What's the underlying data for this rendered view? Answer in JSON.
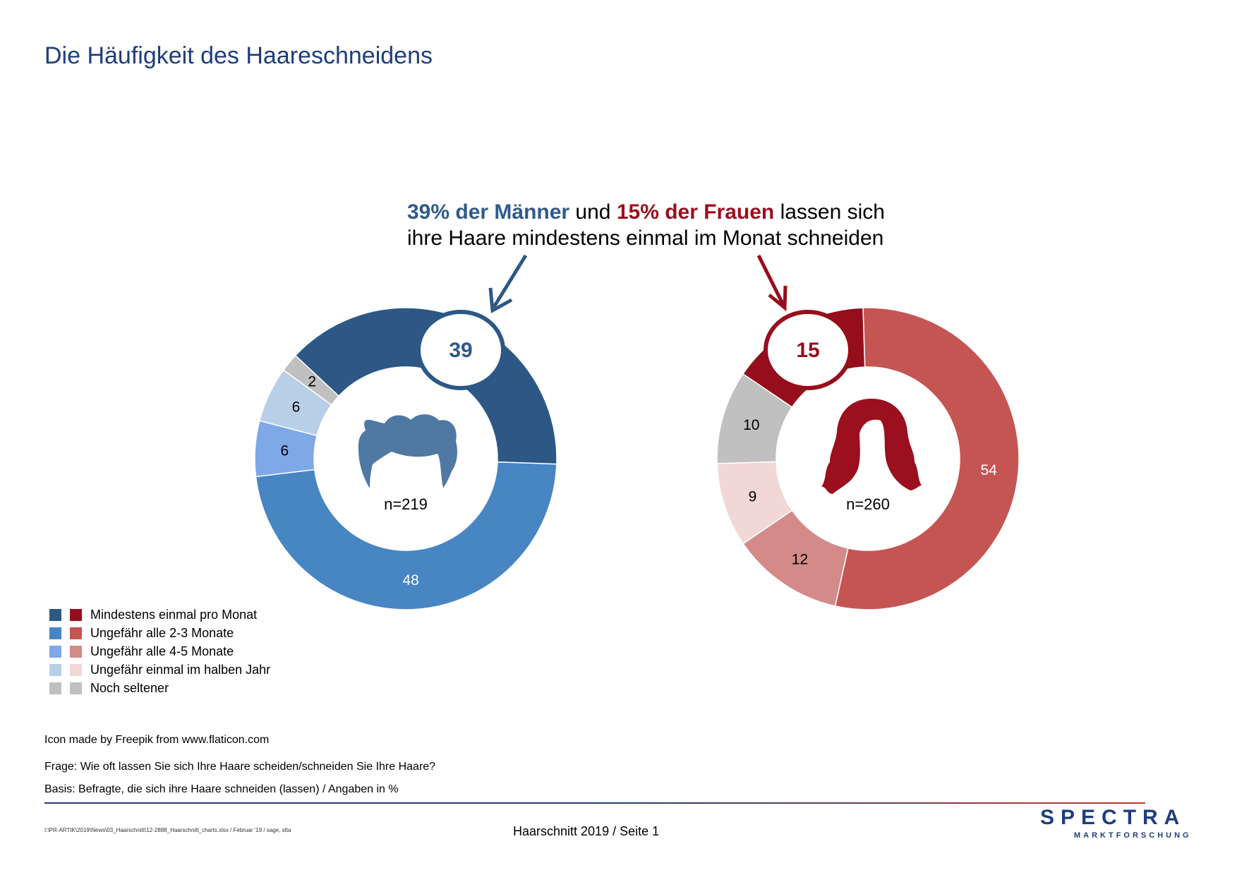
{
  "page": {
    "title": "Die Häufigkeit des Haareschneidens",
    "headline": {
      "men_part": "39% der Männer",
      "and": " und ",
      "women_part": "15% der Frauen",
      "rest_line1": " lassen sich",
      "line2": "ihre Haare mindestens einmal im Monat schneiden"
    },
    "notes": {
      "icon_credit": "Icon made by Freepik from www.flaticon.com",
      "question": "Frage: Wie oft lassen Sie sich Ihre Haare scheiden/schneiden Sie Ihre Haare?",
      "basis": "Basis: Befragte, die sich ihre Haare schneiden (lassen) / Angaben in %"
    },
    "footer": {
      "file_path": "I:\\PR-ARTIK\\2019\\News\\03_Haarschnitt\\12-2888_Haarschnitt_charts.xlsx / Februar '19 / sage, stta",
      "page_label": "Haarschnitt 2019  /  Seite  1"
    },
    "logo": {
      "main": "SPECTRA",
      "sub": "MARKTFORSCHUNG"
    }
  },
  "chart_data": [
    {
      "type": "pie",
      "variant": "donut",
      "group": "Männer",
      "n_label": "n=219",
      "categories": [
        "Mindestens einmal pro Monat",
        "Ungefähr alle 2-3 Monate",
        "Ungefähr alle 4-5 Monate",
        "Ungefähr einmal im halben Jahr",
        "Noch seltener"
      ],
      "values": [
        39,
        48,
        6,
        6,
        2
      ],
      "colors": [
        "#2d5885",
        "#4885c3",
        "#7ea8e6",
        "#b8cfe8",
        "#c0c0c0"
      ],
      "label_colors": [
        "#2d5885",
        "#ffffff",
        "#000000",
        "#000000",
        "#000000"
      ],
      "highlight_color": "#2d5885",
      "icon": "male-hair-icon"
    },
    {
      "type": "pie",
      "variant": "donut",
      "group": "Frauen",
      "n_label": "n=260",
      "categories": [
        "Mindestens einmal pro Monat",
        "Ungefähr alle 2-3 Monate",
        "Ungefähr alle 4-5 Monate",
        "Ungefähr einmal im halben Jahr",
        "Noch seltener"
      ],
      "values": [
        15,
        54,
        12,
        9,
        10
      ],
      "colors": [
        "#960e1c",
        "#c55553",
        "#d48a88",
        "#f2d7d7",
        "#c0c0c0"
      ],
      "label_colors": [
        "#960e1c",
        "#ffffff",
        "#000000",
        "#000000",
        "#000000"
      ],
      "highlight_color": "#960e1c",
      "icon": "female-hair-icon"
    }
  ],
  "legend": {
    "items": [
      {
        "label": "Mindestens einmal pro Monat",
        "men_color": "#2d5885",
        "women_color": "#960e1c"
      },
      {
        "label": "Ungefähr alle 2-3 Monate",
        "men_color": "#4885c3",
        "women_color": "#c55553"
      },
      {
        "label": "Ungefähr alle 4-5 Monate",
        "men_color": "#7ea8e6",
        "women_color": "#d48a88"
      },
      {
        "label": "Ungefähr einmal im halben Jahr",
        "men_color": "#b8cfe8",
        "women_color": "#f2d7d7"
      },
      {
        "label": "Noch seltener",
        "men_color": "#c0c0c0",
        "women_color": "#c0c0c0"
      }
    ]
  }
}
